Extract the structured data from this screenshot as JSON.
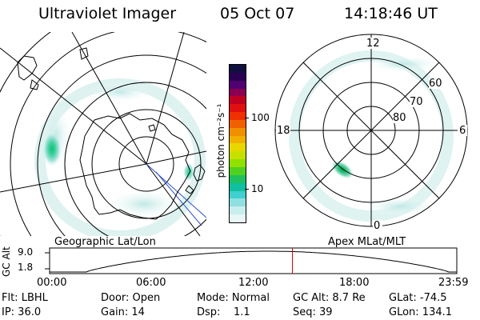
{
  "header": {
    "instrument": "Ultraviolet Imager",
    "date": "05 Oct 07",
    "time": "14:18:46 UT"
  },
  "colorbar": {
    "unit_label": "photon cm⁻²s⁻¹",
    "ticks": [
      "100",
      "10"
    ],
    "colors": [
      "#101040",
      "#2a0050",
      "#500070",
      "#8a0050",
      "#c00020",
      "#e01010",
      "#f03000",
      "#f06000",
      "#f09000",
      "#f0b000",
      "#e8d800",
      "#c8e000",
      "#90e000",
      "#50d020",
      "#20c060",
      "#10c0a0",
      "#40d0d0",
      "#90e0e0",
      "#c8eeee",
      "#e8f6f6"
    ]
  },
  "left_panel": {
    "label": "Geographic Lat/Lon"
  },
  "right_panel": {
    "label": "Apex MLat/MLT",
    "mlt_labels": {
      "top": "12",
      "left": "18",
      "right": "6",
      "bottom": "0"
    },
    "lat_labels": [
      "60",
      "70",
      "80"
    ]
  },
  "altitude_plot": {
    "axis_label": "GC Alt",
    "y_ticks": [
      "9.0",
      "1.8"
    ],
    "x_ticks": [
      "00:00",
      "06:00",
      "12:00",
      "18:00",
      "23:59"
    ],
    "marker_color": "#e00000",
    "current_time_hours": 14.31
  },
  "status": {
    "row1": [
      {
        "text": "Flt: LBHL"
      },
      {
        "text": "Door: Open"
      },
      {
        "text": "Mode: Normal"
      },
      {
        "text": "GC Alt: 8.7 Re"
      },
      {
        "text": "GLat: -74.5"
      }
    ],
    "row2": [
      {
        "text": "IP: 36.0"
      },
      {
        "text": "Gain: 14"
      },
      {
        "text": "Dsp:    1.1"
      },
      {
        "text": "Seq: 39"
      },
      {
        "text": "GLon: 134.1"
      }
    ]
  }
}
